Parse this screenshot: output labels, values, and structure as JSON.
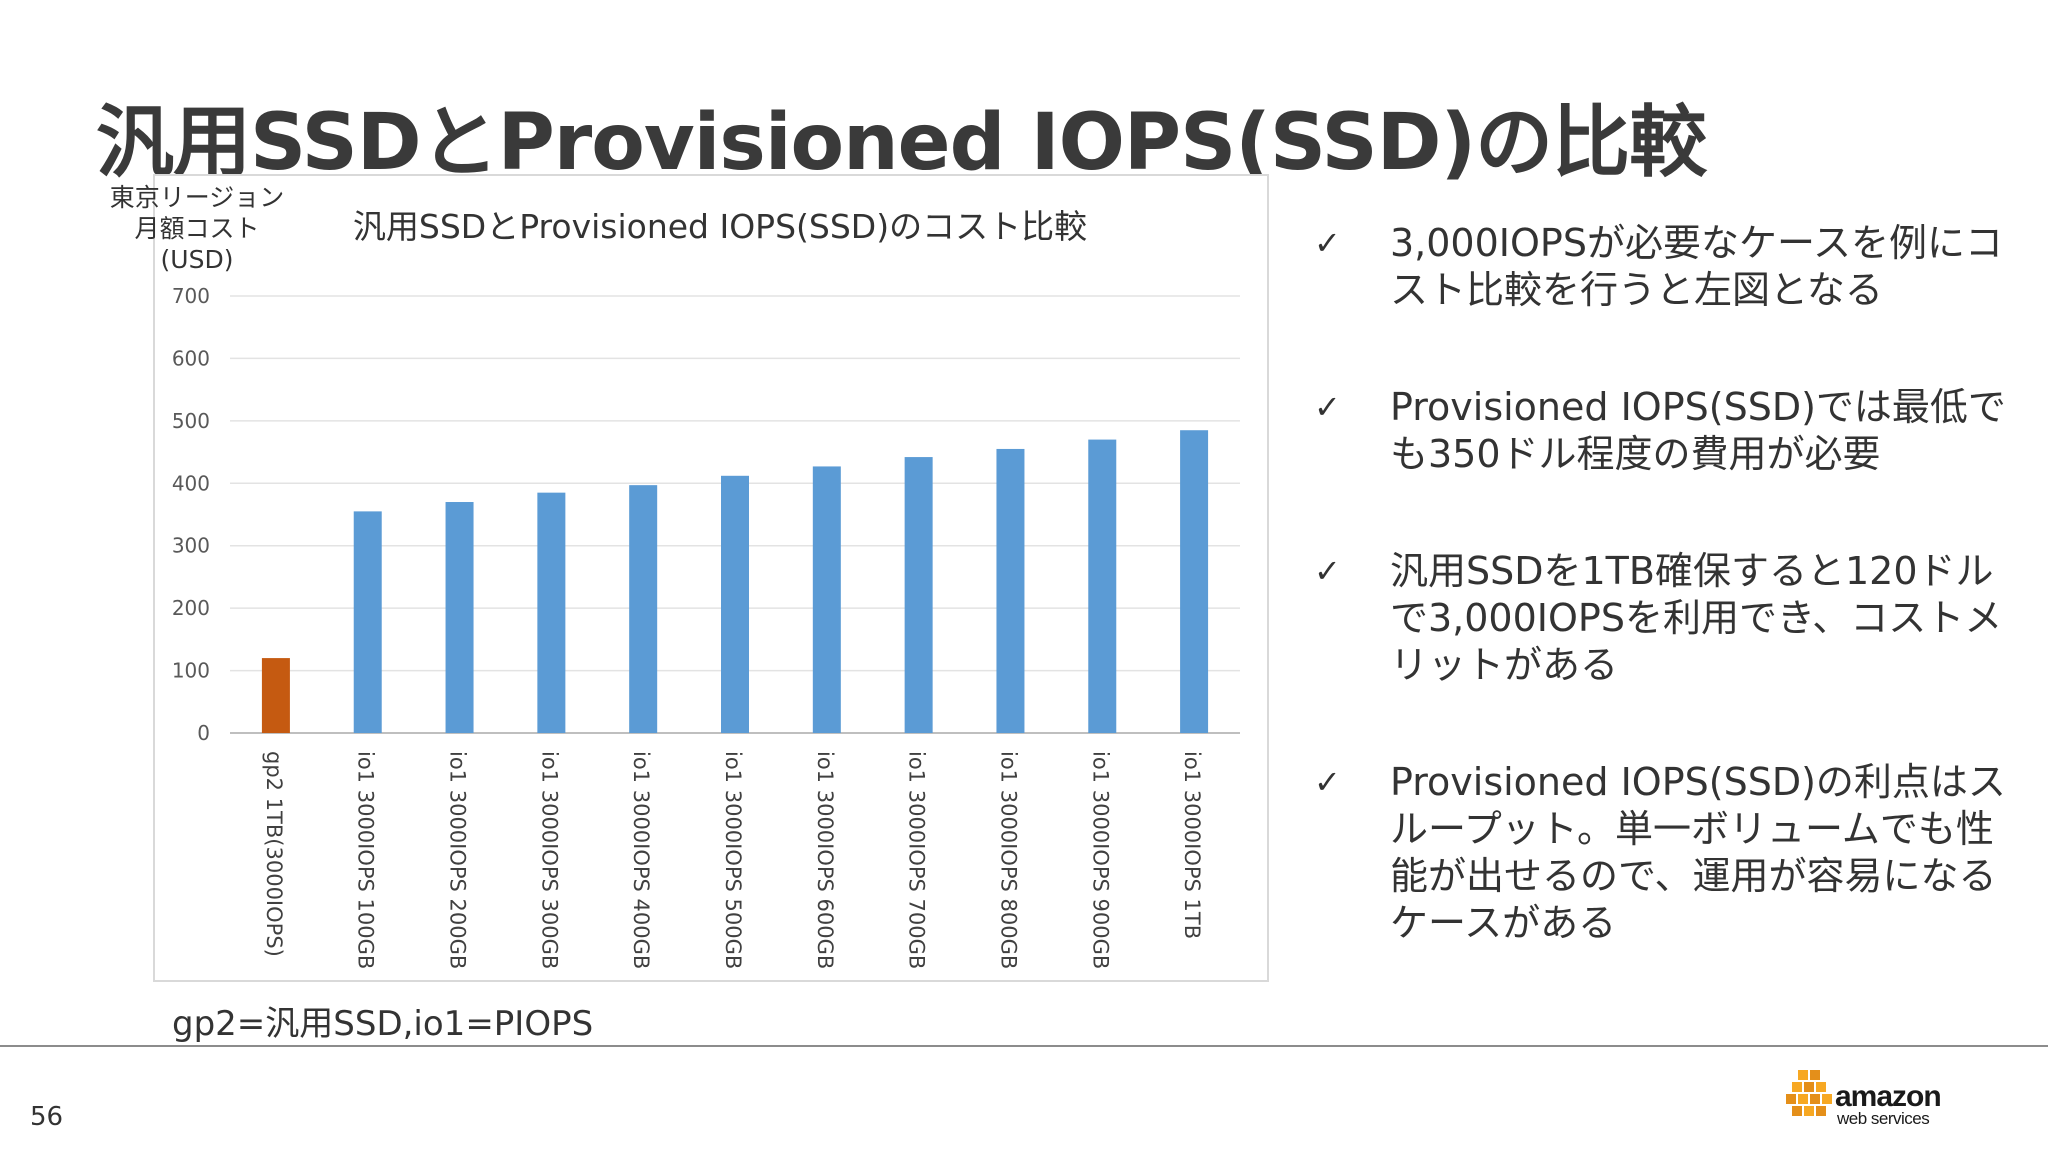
{
  "slide": {
    "title": "汎用SSDとProvisioned IOPS(SSD)の比較",
    "page_number": "56",
    "note": "gp2=汎用SSD,io1=PIOPS"
  },
  "chart_data": {
    "type": "bar",
    "title": "汎用SSDとProvisioned IOPS(SSD)のコスト比較",
    "ylabel_lines": [
      "東京リージョン",
      "月額コスト",
      "(USD)"
    ],
    "xlabel": "",
    "ylim": [
      0,
      700
    ],
    "yticks": [
      0,
      100,
      200,
      300,
      400,
      500,
      600,
      700
    ],
    "grid": true,
    "categories": [
      "gp2 1TB(3000IOPS)",
      "io1 3000IOPS 100GB",
      "io1 3000IOPS 200GB",
      "io1 3000IOPS 300GB",
      "io1 3000IOPS 400GB",
      "io1 3000IOPS 500GB",
      "io1 3000IOPS 600GB",
      "io1 3000IOPS 700GB",
      "io1 3000IOPS 800GB",
      "io1 3000IOPS 900GB",
      "io1 3000IOPS 1TB"
    ],
    "values": [
      120,
      355,
      370,
      385,
      397,
      412,
      427,
      442,
      455,
      470,
      485
    ],
    "bar_colors": [
      "#c55a11",
      "#5b9bd5",
      "#5b9bd5",
      "#5b9bd5",
      "#5b9bd5",
      "#5b9bd5",
      "#5b9bd5",
      "#5b9bd5",
      "#5b9bd5",
      "#5b9bd5",
      "#5b9bd5"
    ]
  },
  "bullets": {
    "check_glyph": "✓",
    "items": [
      "3,000IOPSが必要なケースを例にコスト比較を行うと左図となる",
      "Provisioned IOPS(SSD)では最低でも350ドル程度の費用が必要",
      "汎用SSDを1TB確保すると120ドルで3,000IOPSを利用でき、コストメリットがある",
      "Provisioned IOPS(SSD)の利点はスループット。単一ボリュームでも性能が出せるので、運用が容易になるケースがある"
    ]
  },
  "logo": {
    "word": "amazon",
    "sub": "web services",
    "colors": {
      "cube_light": "#f7a823",
      "cube_dark": "#e48f1a",
      "text": "#1a1a1a"
    }
  }
}
